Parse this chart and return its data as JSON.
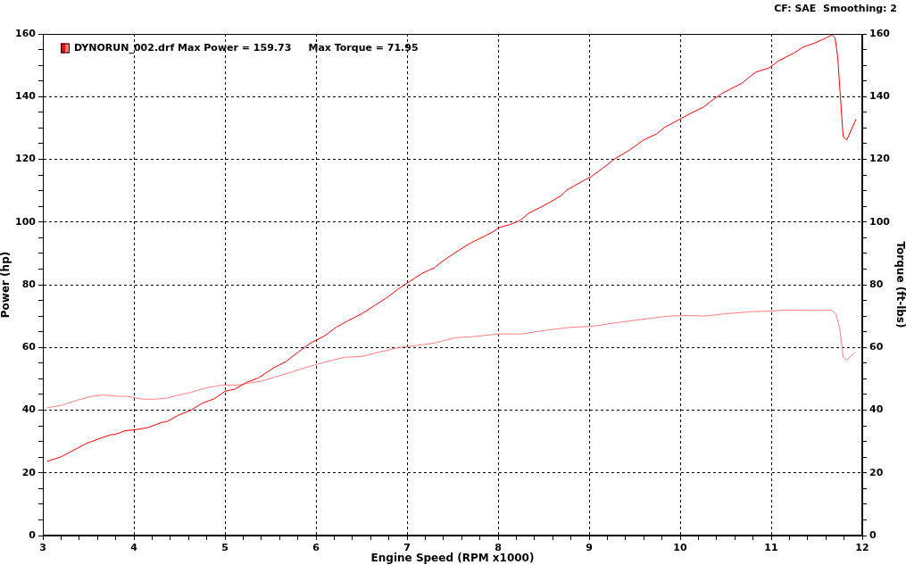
{
  "chart_data": {
    "type": "line",
    "xlabel": "Engine Speed (RPM x1000)",
    "ylabel": "Power (hp)",
    "y2label": "Torque (ft-lbs)",
    "annotations": [
      "CF: SAE  Smoothing: 2"
    ],
    "xlim": [
      3,
      12
    ],
    "ylim": [
      0,
      160
    ],
    "y2lim": [
      0,
      160
    ],
    "xticks": [
      3,
      {
        "value": 3.2,
        "label": null
      },
      {
        "value": 3.4,
        "label": null
      },
      {
        "value": 3.6,
        "label": null
      },
      {
        "value": 3.8,
        "label": null
      },
      4,
      {
        "value": 4.2,
        "label": null
      },
      {
        "value": 4.4,
        "label": null
      },
      {
        "value": 4.6,
        "label": null
      },
      {
        "value": 4.8,
        "label": null
      },
      5,
      {
        "value": 5.2,
        "label": null
      },
      {
        "value": 5.4,
        "label": null
      },
      {
        "value": 5.6,
        "label": null
      },
      {
        "value": 5.8,
        "label": null
      },
      6,
      {
        "value": 6.2,
        "label": null
      },
      {
        "value": 6.4,
        "label": null
      },
      {
        "value": 6.6,
        "label": null
      },
      {
        "value": 6.8,
        "label": null
      },
      7,
      {
        "value": 7.2,
        "label": null
      },
      {
        "value": 7.4,
        "label": null
      },
      {
        "value": 7.6,
        "label": null
      },
      {
        "value": 7.8,
        "label": null
      },
      8,
      {
        "value": 8.2,
        "label": null
      },
      {
        "value": 8.4,
        "label": null
      },
      {
        "value": 8.6,
        "label": null
      },
      {
        "value": 8.8,
        "label": null
      },
      9,
      {
        "value": 9.2,
        "label": null
      },
      {
        "value": 9.4,
        "label": null
      },
      {
        "value": 9.6,
        "label": null
      },
      {
        "value": 9.8,
        "label": null
      },
      10,
      {
        "value": 10.2,
        "label": null
      },
      {
        "value": 10.4,
        "label": null
      },
      {
        "value": 10.6,
        "label": null
      },
      {
        "value": 10.8,
        "label": null
      },
      11,
      {
        "value": 11.2,
        "label": null
      },
      {
        "value": 11.4,
        "label": null
      },
      {
        "value": 11.6,
        "label": null
      },
      {
        "value": 11.8,
        "label": null
      },
      12
    ],
    "yticks": [
      0,
      {
        "value": 5,
        "label": null
      },
      {
        "value": 10,
        "label": null
      },
      {
        "value": 15,
        "label": null
      },
      20,
      {
        "value": 25,
        "label": null
      },
      {
        "value": 30,
        "label": null
      },
      {
        "value": 35,
        "label": null
      },
      40,
      {
        "value": 45,
        "label": null
      },
      {
        "value": 50,
        "label": null
      },
      {
        "value": 55,
        "label": null
      },
      60,
      {
        "value": 65,
        "label": null
      },
      {
        "value": 70,
        "label": null
      },
      {
        "value": 75,
        "label": null
      },
      80,
      {
        "value": 85,
        "label": null
      },
      {
        "value": 90,
        "label": null
      },
      {
        "value": 95,
        "label": null
      },
      100,
      {
        "value": 105,
        "label": null
      },
      {
        "value": 110,
        "label": null
      },
      {
        "value": 115,
        "label": null
      },
      120,
      {
        "value": 125,
        "label": null
      },
      {
        "value": 130,
        "label": null
      },
      {
        "value": 135,
        "label": null
      },
      140,
      {
        "value": 145,
        "label": null
      },
      {
        "value": 150,
        "label": null
      },
      {
        "value": 155,
        "label": null
      },
      160
    ],
    "y2ticks": [
      0,
      {
        "value": 5,
        "label": null
      },
      {
        "value": 10,
        "label": null
      },
      {
        "value": 15,
        "label": null
      },
      20,
      {
        "value": 25,
        "label": null
      },
      {
        "value": 30,
        "label": null
      },
      {
        "value": 35,
        "label": null
      },
      40,
      {
        "value": 45,
        "label": null
      },
      {
        "value": 50,
        "label": null
      },
      {
        "value": 55,
        "label": null
      },
      60,
      {
        "value": 65,
        "label": null
      },
      {
        "value": 70,
        "label": null
      },
      {
        "value": 75,
        "label": null
      },
      80,
      {
        "value": 85,
        "label": null
      },
      {
        "value": 90,
        "label": null
      },
      {
        "value": 95,
        "label": null
      },
      100,
      {
        "value": 105,
        "label": null
      },
      {
        "value": 110,
        "label": null
      },
      {
        "value": 115,
        "label": null
      },
      120,
      {
        "value": 125,
        "label": null
      },
      {
        "value": 130,
        "label": null
      },
      {
        "value": 135,
        "label": null
      },
      140,
      {
        "value": 145,
        "label": null
      },
      {
        "value": 150,
        "label": null
      },
      {
        "value": 155,
        "label": null
      },
      160
    ],
    "grid": true,
    "legend": "top left",
    "marker": "none",
    "line_style": "solid",
    "series": [
      {
        "name": "DYNORUN_002.drf Max Power = 159.73     Max Torque = 71.95",
        "color": "#ff0000",
        "x": [
          3.05,
          3.2,
          3.48,
          3.61,
          3.74,
          3.8,
          3.9,
          4.0,
          4.15,
          4.31,
          4.36,
          4.49,
          4.62,
          4.75,
          4.88,
          5.0,
          5.11,
          5.24,
          5.37,
          5.54,
          5.67,
          5.8,
          5.93,
          6.0,
          6.09,
          6.22,
          6.35,
          6.5,
          6.65,
          6.78,
          6.91,
          7.0,
          7.17,
          7.3,
          7.38,
          7.55,
          7.68,
          7.94,
          8.01,
          8.13,
          8.25,
          8.33,
          8.54,
          8.69,
          8.75,
          8.95,
          9.02,
          9.15,
          9.28,
          9.44,
          9.6,
          9.74,
          9.83,
          10.01,
          10.13,
          10.26,
          10.34,
          10.47,
          10.68,
          10.75,
          10.83,
          10.98,
          11.08,
          11.25,
          11.35,
          11.48,
          11.6,
          11.67,
          11.7,
          11.73,
          11.76,
          11.79,
          11.83,
          11.93
        ],
        "values": [
          23.7,
          25.1,
          29.4,
          30.8,
          32.1,
          32.3,
          33.4,
          33.7,
          34.4,
          36.1,
          36.3,
          38.4,
          39.9,
          42.2,
          43.6,
          46.0,
          46.7,
          48.9,
          50.3,
          53.6,
          55.5,
          58.4,
          61.2,
          62.3,
          63.6,
          66.4,
          68.5,
          70.7,
          73.5,
          75.9,
          78.8,
          80.5,
          83.7,
          85.4,
          87.3,
          90.6,
          93.0,
          96.8,
          98.2,
          99.2,
          100.6,
          102.7,
          105.8,
          108.4,
          110.1,
          113.4,
          114.4,
          117.2,
          120.1,
          122.9,
          126.2,
          128.1,
          130.2,
          133.0,
          134.9,
          136.7,
          138.6,
          141.2,
          144.3,
          146.0,
          147.8,
          149.2,
          151.4,
          153.9,
          155.8,
          157.1,
          158.7,
          159.7,
          158.9,
          152.8,
          140.0,
          127.2,
          126.2,
          132.7
        ]
      },
      {
        "color": "#ff7f7f",
        "axis": "y2",
        "x": [
          3.05,
          3.2,
          3.38,
          3.54,
          3.67,
          3.84,
          3.92,
          4.1,
          4.23,
          4.36,
          4.49,
          4.62,
          4.78,
          4.95,
          5.14,
          5.31,
          5.4,
          5.54,
          5.72,
          5.83,
          6.0,
          6.19,
          6.32,
          6.5,
          6.71,
          6.91,
          7.1,
          7.3,
          7.53,
          7.71,
          8.01,
          8.26,
          8.53,
          8.79,
          9.02,
          9.28,
          9.6,
          9.87,
          10.09,
          10.26,
          10.49,
          10.78,
          11.01,
          11.11,
          11.5,
          11.66,
          11.71,
          11.75,
          11.78,
          11.79,
          11.83,
          11.92
        ],
        "values": [
          40.8,
          41.5,
          43.2,
          44.4,
          44.8,
          44.4,
          44.4,
          43.5,
          43.5,
          43.8,
          44.8,
          45.6,
          47.0,
          47.9,
          48.0,
          48.9,
          49.2,
          50.5,
          52.0,
          53.1,
          54.5,
          56.0,
          56.9,
          57.1,
          58.6,
          60.0,
          60.6,
          61.4,
          63.1,
          63.4,
          64.3,
          64.3,
          65.5,
          66.4,
          66.7,
          67.8,
          69.0,
          70.0,
          70.2,
          70.0,
          70.7,
          71.4,
          71.6,
          71.9,
          71.8,
          71.9,
          70.7,
          66.4,
          59.8,
          56.9,
          56.0,
          58.4
        ]
      }
    ]
  }
}
